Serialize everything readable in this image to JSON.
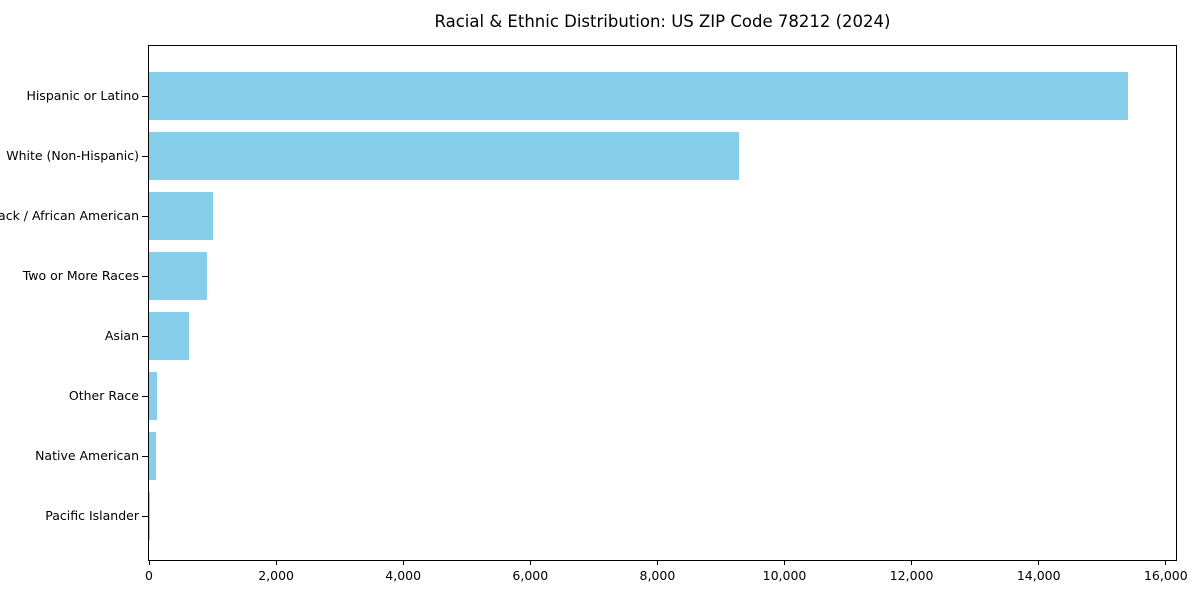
{
  "chart_data": {
    "type": "bar",
    "orientation": "horizontal",
    "title": "Racial & Ethnic Distribution: US ZIP Code 78212 (2024)",
    "categories": [
      "Hispanic or Latino",
      "White (Non-Hispanic)",
      "Black / African American",
      "Two or More Races",
      "Asian",
      "Other Race",
      "Native American",
      "Pacific Islander"
    ],
    "values": [
      15400,
      9280,
      1010,
      920,
      630,
      120,
      110,
      20
    ],
    "xlabel": "",
    "ylabel": "",
    "xlim": [
      0,
      16160
    ],
    "x_ticks": [
      0,
      2000,
      4000,
      6000,
      8000,
      10000,
      12000,
      14000,
      16000
    ],
    "x_tick_labels": [
      "0",
      "2,000",
      "4,000",
      "6,000",
      "8,000",
      "10,000",
      "12,000",
      "14,000",
      "16,000"
    ],
    "bar_color": "#87CEEB",
    "axis_color": "#000000",
    "background_color": "#FFFFFF",
    "grid": false,
    "legend": null
  }
}
